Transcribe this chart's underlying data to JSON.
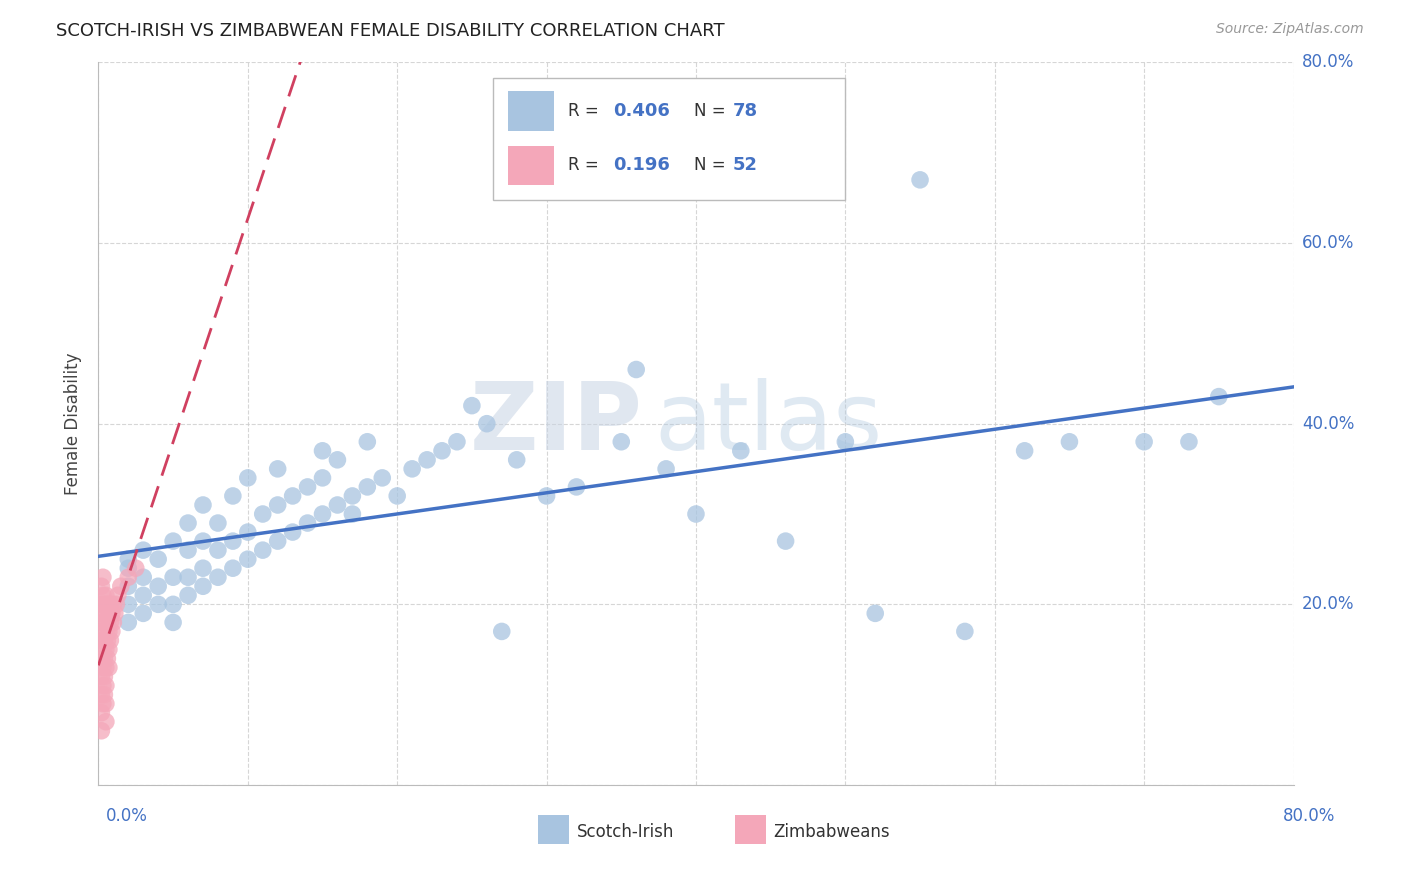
{
  "title": "SCOTCH-IRISH VS ZIMBABWEAN FEMALE DISABILITY CORRELATION CHART",
  "source": "Source: ZipAtlas.com",
  "ylabel": "Female Disability",
  "xmin": 0.0,
  "xmax": 0.8,
  "ymin": 0.0,
  "ymax": 0.8,
  "scotch_irish_R": 0.406,
  "scotch_irish_N": 78,
  "zimbabwean_R": 0.196,
  "zimbabwean_N": 52,
  "scotch_irish_color": "#a8c4e0",
  "scotch_irish_line_color": "#4472c4",
  "zimbabwean_color": "#f4a7b9",
  "zimbabwean_line_color": "#d04060",
  "background_color": "#ffffff",
  "grid_color": "#cccccc",
  "title_color": "#222222",
  "axis_label_color": "#4472c4",
  "scotch_irish_x": [
    0.02,
    0.02,
    0.02,
    0.02,
    0.02,
    0.03,
    0.03,
    0.03,
    0.03,
    0.04,
    0.04,
    0.04,
    0.05,
    0.05,
    0.05,
    0.05,
    0.06,
    0.06,
    0.06,
    0.06,
    0.07,
    0.07,
    0.07,
    0.07,
    0.08,
    0.08,
    0.08,
    0.09,
    0.09,
    0.09,
    0.1,
    0.1,
    0.1,
    0.11,
    0.11,
    0.12,
    0.12,
    0.12,
    0.13,
    0.13,
    0.14,
    0.14,
    0.15,
    0.15,
    0.15,
    0.16,
    0.16,
    0.17,
    0.17,
    0.18,
    0.18,
    0.19,
    0.2,
    0.21,
    0.22,
    0.23,
    0.24,
    0.25,
    0.26,
    0.27,
    0.28,
    0.3,
    0.32,
    0.35,
    0.38,
    0.4,
    0.43,
    0.46,
    0.5,
    0.55,
    0.58,
    0.62,
    0.65,
    0.7,
    0.73,
    0.75,
    0.52,
    0.36
  ],
  "scotch_irish_y": [
    0.2,
    0.22,
    0.24,
    0.25,
    0.18,
    0.19,
    0.21,
    0.23,
    0.26,
    0.2,
    0.22,
    0.25,
    0.18,
    0.2,
    0.23,
    0.27,
    0.21,
    0.23,
    0.26,
    0.29,
    0.22,
    0.24,
    0.27,
    0.31,
    0.23,
    0.26,
    0.29,
    0.24,
    0.27,
    0.32,
    0.25,
    0.28,
    0.34,
    0.26,
    0.3,
    0.27,
    0.31,
    0.35,
    0.28,
    0.32,
    0.29,
    0.33,
    0.3,
    0.34,
    0.37,
    0.31,
    0.36,
    0.32,
    0.3,
    0.33,
    0.38,
    0.34,
    0.32,
    0.35,
    0.36,
    0.37,
    0.38,
    0.42,
    0.4,
    0.17,
    0.36,
    0.32,
    0.33,
    0.38,
    0.35,
    0.3,
    0.37,
    0.27,
    0.38,
    0.67,
    0.17,
    0.37,
    0.38,
    0.38,
    0.38,
    0.43,
    0.19,
    0.46
  ],
  "zimbabwean_x": [
    0.002,
    0.002,
    0.002,
    0.002,
    0.002,
    0.002,
    0.002,
    0.002,
    0.002,
    0.003,
    0.003,
    0.003,
    0.003,
    0.003,
    0.003,
    0.003,
    0.003,
    0.004,
    0.004,
    0.004,
    0.004,
    0.004,
    0.004,
    0.005,
    0.005,
    0.005,
    0.005,
    0.005,
    0.005,
    0.005,
    0.005,
    0.006,
    0.006,
    0.006,
    0.006,
    0.007,
    0.007,
    0.007,
    0.007,
    0.008,
    0.008,
    0.008,
    0.009,
    0.009,
    0.01,
    0.01,
    0.011,
    0.012,
    0.013,
    0.015,
    0.02,
    0.025
  ],
  "zimbabwean_y": [
    0.1,
    0.12,
    0.14,
    0.16,
    0.18,
    0.2,
    0.22,
    0.08,
    0.06,
    0.11,
    0.13,
    0.15,
    0.17,
    0.19,
    0.21,
    0.23,
    0.09,
    0.12,
    0.14,
    0.16,
    0.18,
    0.2,
    0.1,
    0.13,
    0.15,
    0.17,
    0.19,
    0.21,
    0.11,
    0.09,
    0.07,
    0.14,
    0.16,
    0.18,
    0.2,
    0.15,
    0.17,
    0.19,
    0.13,
    0.16,
    0.18,
    0.2,
    0.17,
    0.19,
    0.18,
    0.2,
    0.19,
    0.2,
    0.21,
    0.22,
    0.23,
    0.24
  ],
  "watermark_zip": "ZIP",
  "watermark_atlas": "atlas"
}
